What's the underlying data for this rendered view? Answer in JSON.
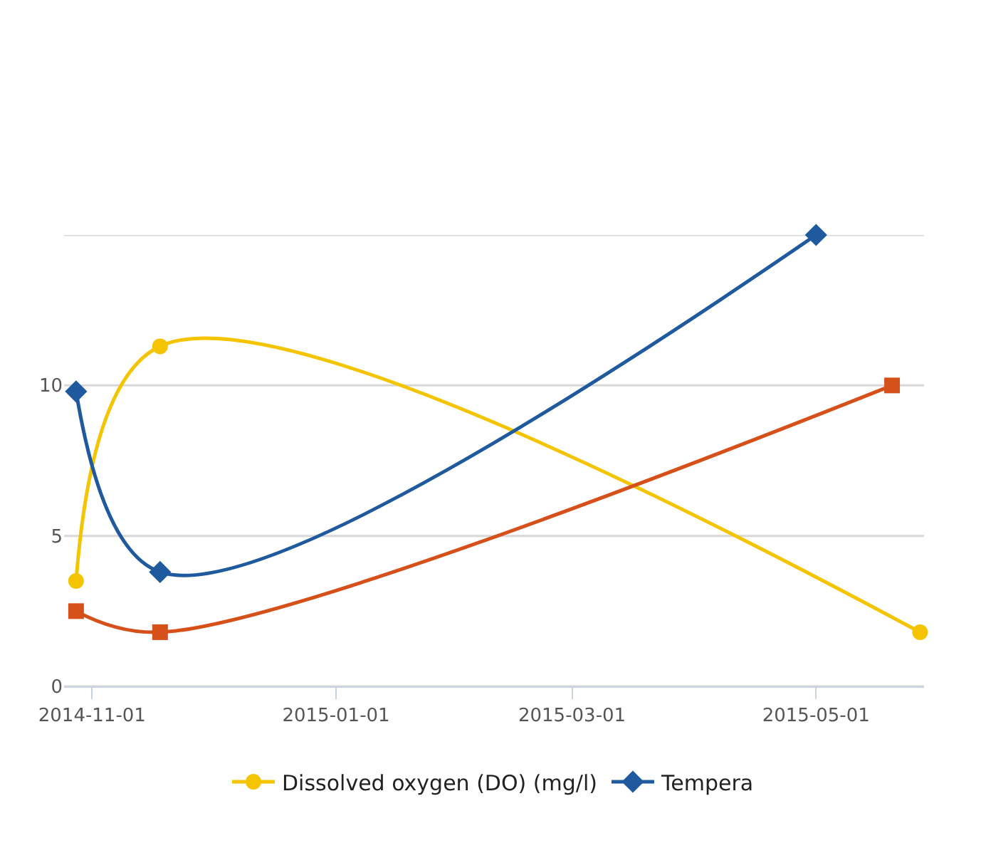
{
  "chart_data": {
    "type": "line",
    "series": [
      {
        "name": "Dissolved oxygen (DO) (mg/l)",
        "color": "#f5c400",
        "marker": "circle",
        "x": [
          "2014-10-28",
          "2014-11-18",
          "2015-05-27"
        ],
        "values": [
          3.5,
          11.3,
          1.8
        ]
      },
      {
        "name": "Tempera",
        "color": "#1f5a9e",
        "marker": "diamond",
        "x": [
          "2014-10-28",
          "2014-11-18",
          "2015-05-01"
        ],
        "values": [
          9.8,
          3.8,
          15
        ]
      },
      {
        "color": "#d6501a",
        "marker": "square",
        "x": [
          "2014-10-28",
          "2014-11-18",
          "2015-05-20"
        ],
        "values": [
          2.5,
          1.8,
          10
        ]
      }
    ],
    "xlim": [
      "2014-10-25",
      "2015-05-28"
    ],
    "xticks": [
      "2014-11-01",
      "2015-01-01",
      "2015-03-01",
      "2015-05-01"
    ],
    "ylim": [
      0,
      15
    ],
    "yticks": [
      0,
      5,
      10,
      {
        "value": 15,
        "label": null
      }
    ],
    "grid": "y",
    "legend": "bottom"
  }
}
